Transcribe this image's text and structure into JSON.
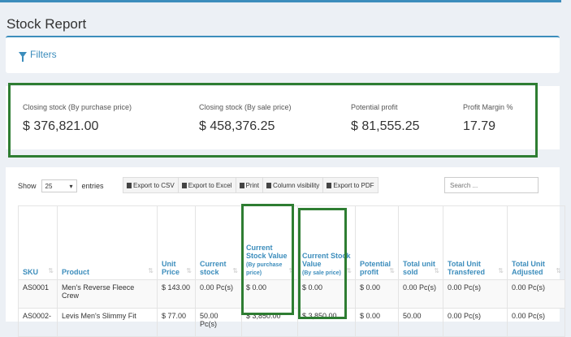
{
  "page": {
    "title": "Stock Report"
  },
  "filters": {
    "label": "Filters"
  },
  "summary": [
    {
      "label": "Closing stock (By purchase price)",
      "value": "$ 376,821.00"
    },
    {
      "label": "Closing stock (By sale price)",
      "value": "$ 458,376.25"
    },
    {
      "label": "Potential profit",
      "value": "$ 81,555.25"
    },
    {
      "label": "Profit Margin %",
      "value": "17.79"
    }
  ],
  "controls": {
    "show_label": "Show",
    "entries_value": "25",
    "entries_label": "entries",
    "buttons": [
      "Export to CSV",
      "Export to Excel",
      "Print",
      "Column visibility",
      "Export to PDF"
    ],
    "search_placeholder": "Search ..."
  },
  "table": {
    "headers": [
      "SKU",
      "Product",
      "Unit Price",
      "Current stock",
      "Current Stock Value",
      "(By purchase price)",
      "Current Stock Value",
      "(By sale price)",
      "Potential profit",
      "Total unit sold",
      "Total Unit Transfered",
      "Total Unit Adjusted"
    ],
    "rows": [
      [
        "AS0001",
        "Men's Reverse Fleece Crew",
        "$ 143.00",
        "0.00 Pc(s)",
        "$ 0.00",
        "$ 0.00",
        "$ 0.00",
        "0.00 Pc(s)",
        "0.00 Pc(s)",
        "0.00 Pc(s)"
      ],
      [
        "AS0002-",
        "Levis Men's Slimmy Fit",
        "$ 77.00",
        "50.00 Pc(s)",
        "$ 3,850.00",
        "$ 3,850.00",
        "$ 0.00",
        "50.00",
        "0.00 Pc(s)",
        "0.00 Pc(s)"
      ]
    ]
  }
}
